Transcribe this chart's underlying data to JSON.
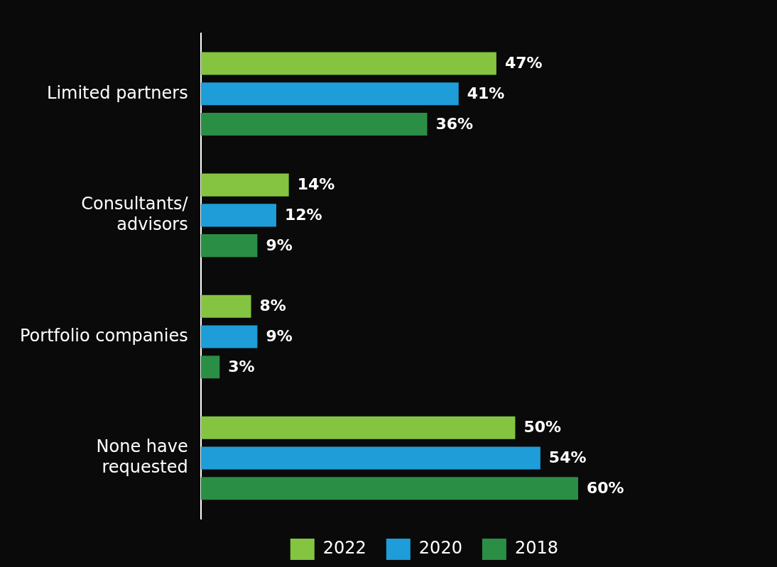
{
  "chart_data": {
    "type": "bar",
    "orientation": "horizontal",
    "categories": [
      "Limited partners",
      "Consultants/\nadvisors",
      "Portfolio companies",
      "None have\nrequested"
    ],
    "series": [
      {
        "name": "2022",
        "color": "#84c441",
        "values": [
          47,
          14,
          8,
          50
        ],
        "value_labels": [
          "47%",
          "14%",
          "8%",
          "50%"
        ]
      },
      {
        "name": "2020",
        "color": "#1e9dd8",
        "values": [
          41,
          12,
          9,
          54
        ],
        "value_labels": [
          "41%",
          "12%",
          "9%",
          "54%"
        ]
      },
      {
        "name": "2018",
        "color": "#2a8f45",
        "values": [
          36,
          9,
          3,
          60
        ],
        "value_labels": [
          "36%",
          "9%",
          "3%",
          "60%"
        ]
      }
    ],
    "tick_labels": "y",
    "grid": false,
    "legend": "bottom right"
  }
}
